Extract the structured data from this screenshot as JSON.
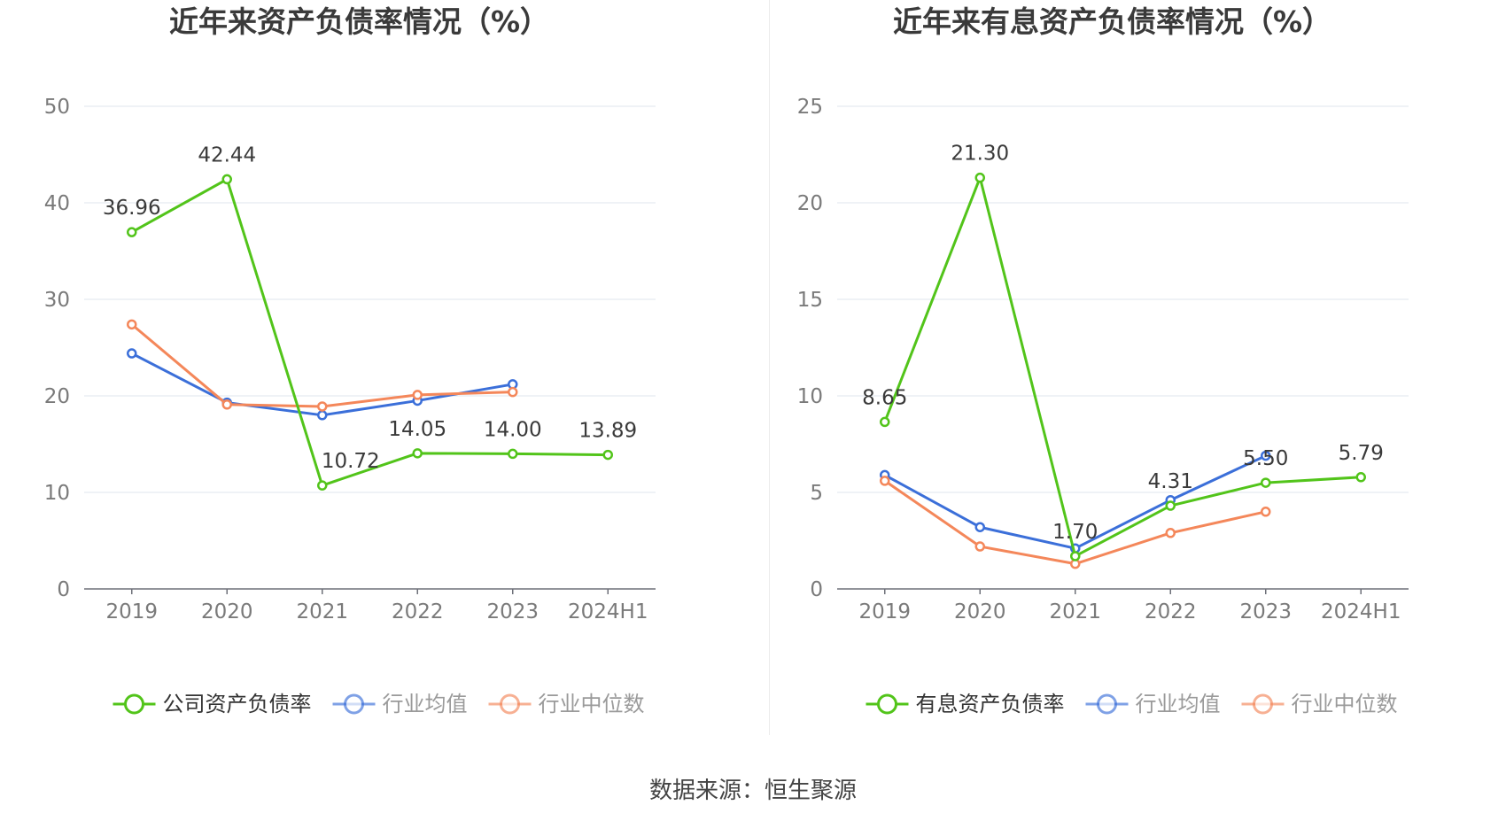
{
  "source": "数据来源：恒生聚源",
  "chart_data": [
    {
      "type": "line",
      "title": "近年来资产负债率情况（%）",
      "categories": [
        "2019",
        "2020",
        "2021",
        "2022",
        "2023",
        "2024H1"
      ],
      "ylim": [
        0,
        50
      ],
      "yticks": [
        0,
        10,
        20,
        30,
        40,
        50
      ],
      "ytick_labels": [
        "0",
        "10",
        "20",
        "30",
        "40",
        "50"
      ],
      "grid": true,
      "legend_position": "bottom",
      "series": [
        {
          "name": "公司资产负债率",
          "color": "#52c41a",
          "values": [
            36.96,
            42.44,
            10.72,
            14.05,
            14.0,
            13.89
          ],
          "labels": [
            "36.96",
            "42.44",
            "10.72",
            "14.05",
            "14.00",
            "13.89"
          ]
        },
        {
          "name": "行业均值",
          "color": "#3b6fd9",
          "values": [
            24.4,
            19.3,
            18.0,
            19.5,
            21.2,
            null
          ]
        },
        {
          "name": "行业中位数",
          "color": "#f4875a",
          "values": [
            27.4,
            19.1,
            18.9,
            20.1,
            20.4,
            null
          ]
        }
      ]
    },
    {
      "type": "line",
      "title": "近年来有息资产负债率情况（%）",
      "categories": [
        "2019",
        "2020",
        "2021",
        "2022",
        "2023",
        "2024H1"
      ],
      "ylim": [
        0,
        25
      ],
      "yticks": [
        0,
        5,
        10,
        15,
        20,
        25
      ],
      "ytick_labels": [
        "0",
        "5",
        "10",
        "15",
        "20",
        "25"
      ],
      "grid": true,
      "legend_position": "bottom",
      "series": [
        {
          "name": "有息资产负债率",
          "color": "#52c41a",
          "values": [
            8.65,
            21.3,
            1.7,
            4.31,
            5.5,
            5.79
          ],
          "labels": [
            "8.65",
            "21.30",
            "1.70",
            "4.31",
            "5.50",
            "5.79"
          ]
        },
        {
          "name": "行业均值",
          "color": "#3b6fd9",
          "values": [
            5.9,
            3.2,
            2.1,
            4.6,
            6.9,
            null
          ]
        },
        {
          "name": "行业中位数",
          "color": "#f4875a",
          "values": [
            5.6,
            2.2,
            1.3,
            2.9,
            4.0,
            null
          ]
        }
      ]
    }
  ]
}
